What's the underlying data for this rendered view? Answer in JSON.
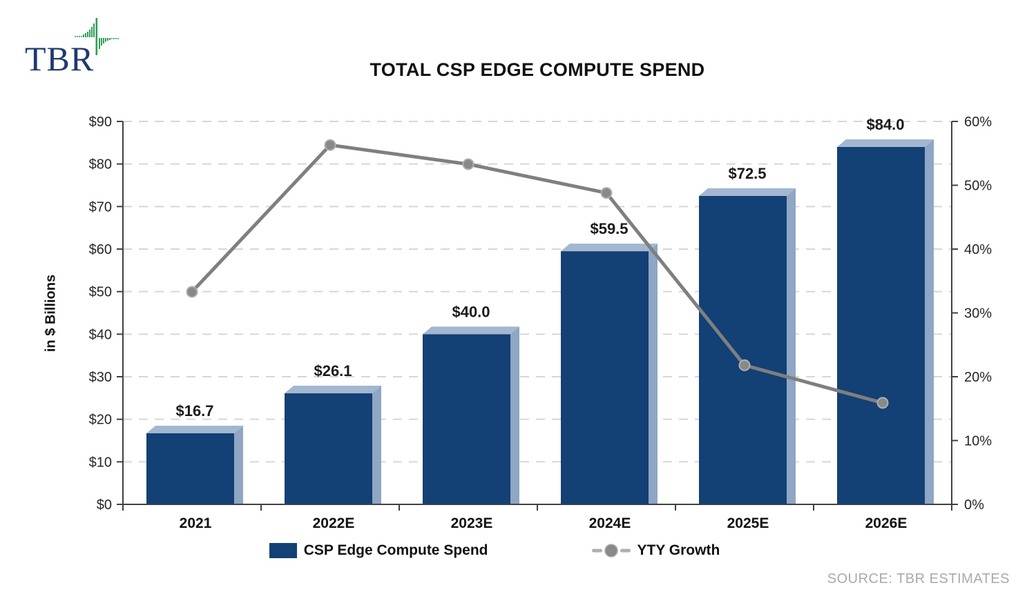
{
  "branding": {
    "logo_text": "TBR",
    "logo_color": "#1E3A6F",
    "logo_icon": "green-pulse-waveform-icon",
    "logo_icon_color": "#2F9E52"
  },
  "chart_data": {
    "type": "bar",
    "subtype": "combo-3d-bar-with-line",
    "title": "TOTAL CSP EDGE COMPUTE SPEND",
    "categories": [
      "2021",
      "2022E",
      "2023E",
      "2024E",
      "2025E",
      "2026E"
    ],
    "series": [
      {
        "name": "CSP Edge Compute Spend",
        "type": "bar",
        "axis": "left",
        "values": [
          16.7,
          26.1,
          40.0,
          59.5,
          72.5,
          84.0
        ],
        "data_labels": [
          "$16.7",
          "$26.1",
          "$40.0",
          "$59.5",
          "$72.5",
          "$84.0"
        ],
        "color": "#134075"
      },
      {
        "name": "YTY Growth",
        "type": "line",
        "axis": "right",
        "values_pct": [
          33.3,
          56.3,
          53.3,
          48.8,
          21.8,
          15.9
        ],
        "color": "#7F7F7F"
      }
    ],
    "left_axis": {
      "label": "in $ Billions",
      "min": 0,
      "max": 90,
      "step": 10,
      "tick_labels": [
        "$0",
        "$10",
        "$20",
        "$30",
        "$40",
        "$50",
        "$60",
        "$70",
        "$80",
        "$90"
      ]
    },
    "right_axis": {
      "min": 0,
      "max": 60,
      "step": 10,
      "tick_labels": [
        "0%",
        "10%",
        "20%",
        "30%",
        "40%",
        "50%",
        "60%"
      ]
    },
    "grid": {
      "horizontal": true,
      "style": "dashed",
      "color": "#D6D6D6"
    },
    "legend_position": "bottom"
  },
  "legend": {
    "items": [
      {
        "label": "CSP Edge Compute Spend",
        "swatch": "bar-square"
      },
      {
        "label": "YTY Growth",
        "swatch": "line-with-marker"
      }
    ]
  },
  "source": {
    "text": "SOURCE: TBR ESTIMATES"
  },
  "colors": {
    "bar_front": "#134075",
    "bar_top": "#A3B7D1",
    "bar_side": "#8FA6C4",
    "line": "#7F7F7F",
    "marker_fill": "#898989",
    "marker_ring": "#AFAFAF",
    "grid": "#D6D6D6",
    "axis": "#404040",
    "tick_text": "#262626",
    "label_text": "#1A1A1A",
    "source_text": "#A9A9A9"
  }
}
